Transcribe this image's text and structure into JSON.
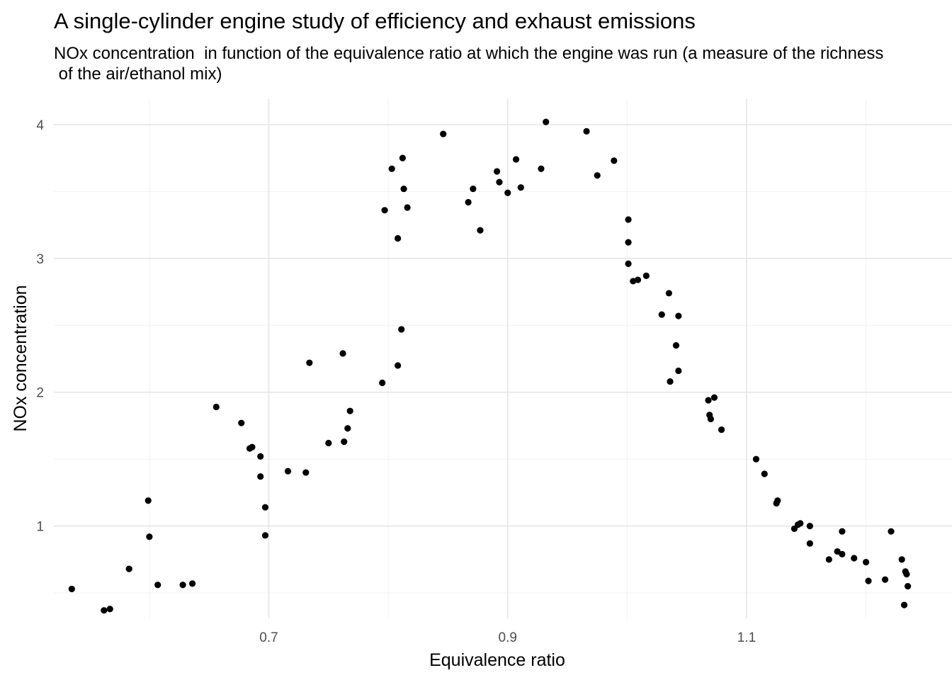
{
  "chart_data": {
    "type": "scatter",
    "title": "A single-cylinder engine study of efficiency and exhaust emissions",
    "subtitle": "NOx concentration  in function of the equivalence ratio at which the engine was run (a measure of the richness\n of the air/ethanol mix)",
    "xlabel": "Equivalence ratio",
    "ylabel": "NOx concentration",
    "xlim": [
      0.52,
      1.272
    ],
    "ylim": [
      0.31,
      4.19
    ],
    "x_ticks": [
      0.7,
      0.9,
      1.1
    ],
    "x_tick_labels": [
      "0.7",
      "0.9",
      "1.1"
    ],
    "x_minor": [
      0.6,
      0.8,
      1.0,
      1.2
    ],
    "y_ticks": [
      1,
      2,
      3,
      4
    ],
    "y_tick_labels": [
      "1",
      "2",
      "3",
      "4"
    ],
    "y_minor": [
      0.5,
      1.5,
      2.5,
      3.5
    ],
    "grid": true,
    "point_color": "#000000",
    "points": [
      {
        "x": 0.535,
        "y": 0.53
      },
      {
        "x": 0.562,
        "y": 0.37
      },
      {
        "x": 0.567,
        "y": 0.38
      },
      {
        "x": 0.583,
        "y": 0.68
      },
      {
        "x": 0.599,
        "y": 1.19
      },
      {
        "x": 0.6,
        "y": 0.92
      },
      {
        "x": 0.607,
        "y": 0.56
      },
      {
        "x": 0.628,
        "y": 0.56
      },
      {
        "x": 0.636,
        "y": 0.57
      },
      {
        "x": 0.656,
        "y": 1.89
      },
      {
        "x": 0.677,
        "y": 1.77
      },
      {
        "x": 0.684,
        "y": 1.58
      },
      {
        "x": 0.686,
        "y": 1.59
      },
      {
        "x": 0.693,
        "y": 1.52
      },
      {
        "x": 0.693,
        "y": 1.37
      },
      {
        "x": 0.697,
        "y": 1.14
      },
      {
        "x": 0.697,
        "y": 0.93
      },
      {
        "x": 0.716,
        "y": 1.41
      },
      {
        "x": 0.731,
        "y": 1.4
      },
      {
        "x": 0.734,
        "y": 2.22
      },
      {
        "x": 0.75,
        "y": 1.62
      },
      {
        "x": 0.762,
        "y": 2.29
      },
      {
        "x": 0.763,
        "y": 1.63
      },
      {
        "x": 0.766,
        "y": 1.73
      },
      {
        "x": 0.768,
        "y": 1.86
      },
      {
        "x": 0.795,
        "y": 2.07
      },
      {
        "x": 0.797,
        "y": 3.36
      },
      {
        "x": 0.803,
        "y": 3.67
      },
      {
        "x": 0.808,
        "y": 3.15
      },
      {
        "x": 0.808,
        "y": 2.2
      },
      {
        "x": 0.811,
        "y": 2.47
      },
      {
        "x": 0.812,
        "y": 3.75
      },
      {
        "x": 0.813,
        "y": 3.52
      },
      {
        "x": 0.816,
        "y": 3.38
      },
      {
        "x": 0.846,
        "y": 3.93
      },
      {
        "x": 0.867,
        "y": 3.42
      },
      {
        "x": 0.871,
        "y": 3.52
      },
      {
        "x": 0.877,
        "y": 3.21
      },
      {
        "x": 0.891,
        "y": 3.65
      },
      {
        "x": 0.893,
        "y": 3.57
      },
      {
        "x": 0.9,
        "y": 3.49
      },
      {
        "x": 0.907,
        "y": 3.74
      },
      {
        "x": 0.911,
        "y": 3.53
      },
      {
        "x": 0.928,
        "y": 3.67
      },
      {
        "x": 0.932,
        "y": 4.02
      },
      {
        "x": 0.966,
        "y": 3.95
      },
      {
        "x": 0.975,
        "y": 3.62
      },
      {
        "x": 0.989,
        "y": 3.73
      },
      {
        "x": 1.001,
        "y": 3.29
      },
      {
        "x": 1.001,
        "y": 3.12
      },
      {
        "x": 1.001,
        "y": 2.96
      },
      {
        "x": 1.005,
        "y": 2.83
      },
      {
        "x": 1.009,
        "y": 2.84
      },
      {
        "x": 1.016,
        "y": 2.87
      },
      {
        "x": 1.029,
        "y": 2.58
      },
      {
        "x": 1.035,
        "y": 2.74
      },
      {
        "x": 1.036,
        "y": 2.08
      },
      {
        "x": 1.041,
        "y": 2.35
      },
      {
        "x": 1.043,
        "y": 2.57
      },
      {
        "x": 1.043,
        "y": 2.16
      },
      {
        "x": 1.068,
        "y": 1.94
      },
      {
        "x": 1.069,
        "y": 1.83
      },
      {
        "x": 1.07,
        "y": 1.8
      },
      {
        "x": 1.073,
        "y": 1.96
      },
      {
        "x": 1.079,
        "y": 1.72
      },
      {
        "x": 1.108,
        "y": 1.5
      },
      {
        "x": 1.115,
        "y": 1.39
      },
      {
        "x": 1.125,
        "y": 1.17
      },
      {
        "x": 1.126,
        "y": 1.19
      },
      {
        "x": 1.14,
        "y": 0.98
      },
      {
        "x": 1.143,
        "y": 1.01
      },
      {
        "x": 1.145,
        "y": 1.02
      },
      {
        "x": 1.153,
        "y": 0.87
      },
      {
        "x": 1.153,
        "y": 1.0
      },
      {
        "x": 1.169,
        "y": 0.75
      },
      {
        "x": 1.176,
        "y": 0.81
      },
      {
        "x": 1.18,
        "y": 0.96
      },
      {
        "x": 1.18,
        "y": 0.79
      },
      {
        "x": 1.19,
        "y": 0.76
      },
      {
        "x": 1.2,
        "y": 0.73
      },
      {
        "x": 1.202,
        "y": 0.59
      },
      {
        "x": 1.216,
        "y": 0.6
      },
      {
        "x": 1.221,
        "y": 0.96
      },
      {
        "x": 1.23,
        "y": 0.75
      },
      {
        "x": 1.232,
        "y": 0.41
      },
      {
        "x": 1.233,
        "y": 0.66
      },
      {
        "x": 1.234,
        "y": 0.64
      },
      {
        "x": 1.235,
        "y": 0.55
      }
    ]
  }
}
